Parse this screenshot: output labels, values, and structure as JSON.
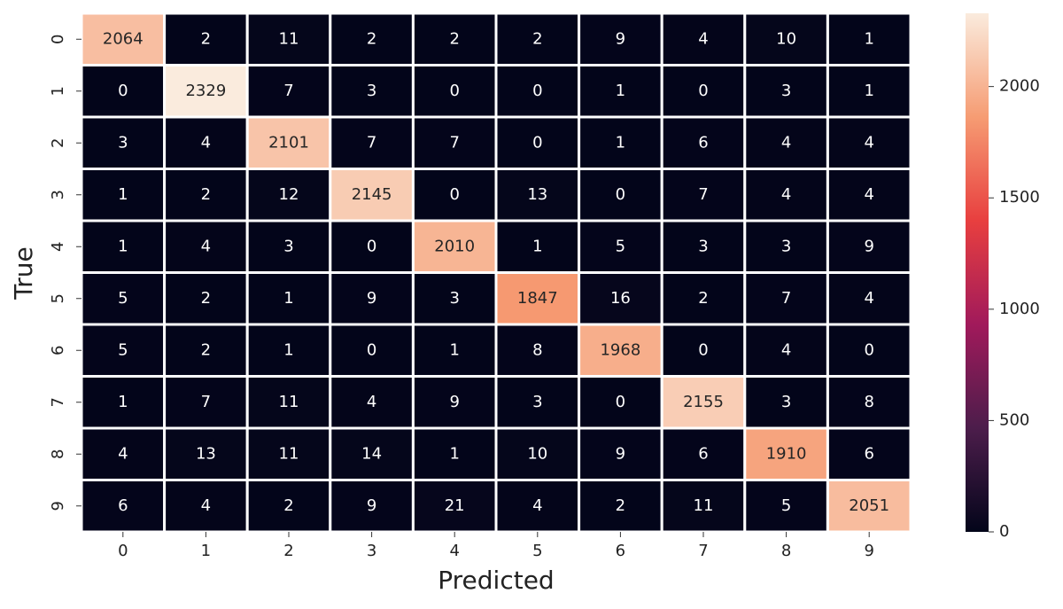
{
  "chart_data": {
    "type": "heatmap",
    "xlabel": "Predicted",
    "ylabel": "True",
    "x_categories": [
      "0",
      "1",
      "2",
      "3",
      "4",
      "5",
      "6",
      "7",
      "8",
      "9"
    ],
    "y_categories": [
      "0",
      "1",
      "2",
      "3",
      "4",
      "5",
      "6",
      "7",
      "8",
      "9"
    ],
    "values": [
      [
        2064,
        2,
        11,
        2,
        2,
        2,
        9,
        4,
        10,
        1
      ],
      [
        0,
        2329,
        7,
        3,
        0,
        0,
        1,
        0,
        3,
        1
      ],
      [
        3,
        4,
        2101,
        7,
        7,
        0,
        1,
        6,
        4,
        4
      ],
      [
        1,
        2,
        12,
        2145,
        0,
        13,
        0,
        7,
        4,
        4
      ],
      [
        1,
        4,
        3,
        0,
        2010,
        1,
        5,
        3,
        3,
        9
      ],
      [
        5,
        2,
        1,
        9,
        3,
        1847,
        16,
        2,
        7,
        4
      ],
      [
        5,
        2,
        1,
        0,
        1,
        8,
        1968,
        0,
        4,
        0
      ],
      [
        1,
        7,
        11,
        4,
        9,
        3,
        0,
        2155,
        3,
        8
      ],
      [
        4,
        13,
        11,
        14,
        1,
        10,
        9,
        6,
        1910,
        6
      ],
      [
        6,
        4,
        2,
        9,
        21,
        4,
        2,
        11,
        5,
        2051
      ]
    ],
    "clim": [
      0,
      2329
    ],
    "cticks": [
      0,
      500,
      1000,
      1500,
      2000
    ],
    "colormap": [
      "#03051a",
      "#4c1d4b",
      "#a11a5b",
      "#e83f3f",
      "#f69c73",
      "#faebdd"
    ]
  }
}
